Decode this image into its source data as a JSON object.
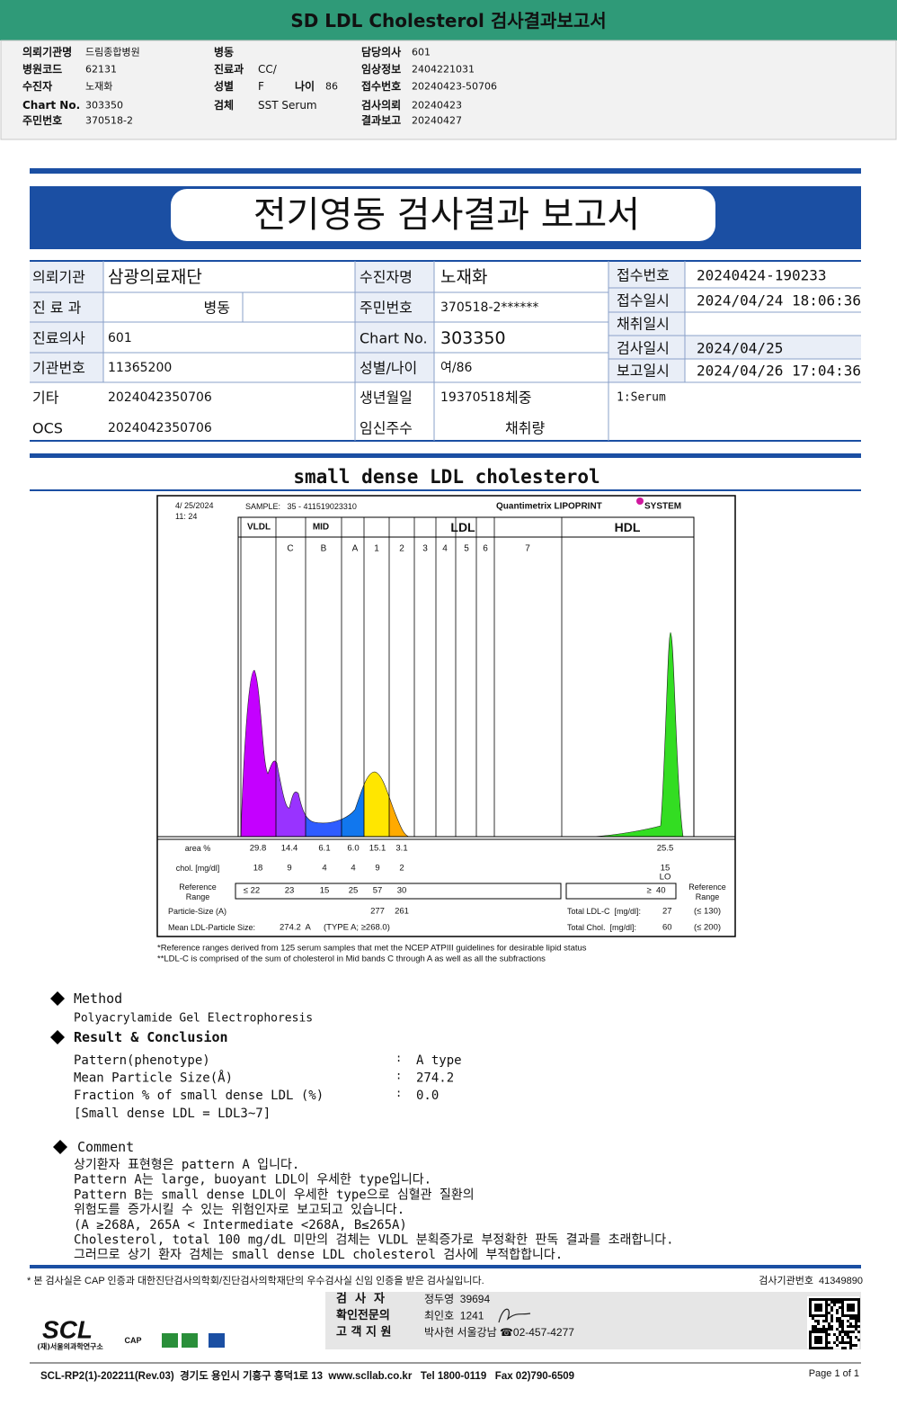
{
  "header": {
    "title": "SD LDL Cholesterol 검사결과보고서"
  },
  "info": {
    "col1": [
      {
        "label": "의뢰기관명",
        "value": "드림종합병원"
      },
      {
        "label": "병원코드",
        "value": "62131"
      },
      {
        "label": "수진자",
        "value": "노재화"
      },
      {
        "label": "Chart No.",
        "value": "303350"
      },
      {
        "label": "주민번호",
        "value": "370518-2"
      }
    ],
    "col2": [
      {
        "label": "병동"
      },
      {
        "label": "진료과",
        "value": "CC/"
      },
      {
        "label": "성별",
        "value": "F"
      },
      {
        "label": "검체",
        "value": "SST Serum"
      }
    ],
    "age": {
      "label": "나이",
      "value": "86"
    },
    "col3": [
      {
        "label": "담당의사",
        "value": "601"
      },
      {
        "label": "임상정보",
        "value": "2404221031"
      },
      {
        "label": "접수번호",
        "value": "20240423-50706"
      },
      {
        "label": "검사의뢰",
        "value": "20240423"
      },
      {
        "label": "결과보고",
        "value": "20240427"
      }
    ]
  },
  "report": {
    "title": "전기영동 검사결과 보고서",
    "left": [
      {
        "label": "의뢰기관",
        "value": "삼광의료재단"
      },
      {
        "label": "진 료 과",
        "value": "병동"
      },
      {
        "label": "진료의사",
        "value": "601"
      },
      {
        "label": "기관번호",
        "value": "11365200"
      },
      {
        "label": "기타",
        "value": "2024042350706"
      },
      {
        "label": "OCS",
        "value": "2024042350706"
      }
    ],
    "middle": [
      {
        "label": "수진자명",
        "value": "노재화"
      },
      {
        "label": "주민번호",
        "value": "370518-2******"
      },
      {
        "label": "Chart No.",
        "value": "303350"
      },
      {
        "label": "성별/나이",
        "value": "여/86"
      },
      {
        "label": "생년월일",
        "value": "19370518",
        "extra_label": "체중"
      },
      {
        "label": "임신주수",
        "extra_label": "채취량"
      }
    ],
    "right": [
      {
        "label": "접수번호",
        "value": "20240424-190233"
      },
      {
        "label": "접수일시",
        "value": "2024/04/24 18:06:36"
      },
      {
        "label": "채취일시"
      },
      {
        "label": "검사일시",
        "value": "2024/04/25"
      },
      {
        "label": "보고일시",
        "value": "2024/04/26 17:04:36"
      }
    ],
    "right_note": "1:Serum"
  },
  "section_title": "small dense LDL cholesterol",
  "electrophoresis": {
    "date": "4/ 25/2024",
    "time": "11: 24",
    "sample": "SAMPLE:   35 - 411519023310",
    "brand": "Quantimetrix LIPOPRINT",
    "brand_suffix": "SYSTEM",
    "groups": [
      "VLDL",
      "MID",
      "LDL",
      "HDL"
    ],
    "bands": [
      "C",
      "B",
      "A",
      "1",
      "2",
      "3",
      "4",
      "5",
      "6",
      "7"
    ],
    "area": {
      "label": "area %",
      "values": [
        "29.8",
        "14.4",
        "6.1",
        "6.0",
        "15.1",
        "3.1"
      ],
      "hdl": "25.5"
    },
    "chol": {
      "label": "chol. [mg/dl]",
      "values": [
        "18",
        "9",
        "4",
        "4",
        "9",
        "2"
      ],
      "hdl": "15",
      "flag": "LO"
    },
    "reference": {
      "label": [
        "Reference",
        "Range"
      ],
      "values": [
        "≤ 22",
        "23",
        "15",
        "25",
        "57",
        "30"
      ],
      "hdl": "≥  40"
    },
    "particle_size": {
      "label": "Particle-Size (A)",
      "values": [
        "277",
        "261"
      ]
    },
    "mean_size": {
      "label": "Mean LDL-Particle Size:",
      "value": "274.2  A",
      "note": "(TYPE A; ≥268.0)"
    },
    "total_ldl": {
      "label": "Total LDL-C  [mg/dl]:",
      "value": "27",
      "range": "(≤ 130)"
    },
    "total_chol": {
      "label": "Total Chol.  [mg/dl]:",
      "value": "60",
      "range": "(≤ 200)"
    },
    "reference_right": [
      "Reference",
      "Range"
    ]
  },
  "footnotes": [
    "*Reference ranges derived from 125 serum samples that met the NCEP ATPIII guidelines for desirable lipid status",
    "**LDL-C is comprised of the sum of cholesterol in Mid bands C through A as well as all the subfractions"
  ],
  "method": {
    "heading": "Method",
    "text": "Polyacrylamide Gel Electrophoresis"
  },
  "result": {
    "heading": "Result & Conclusion",
    "separator": ":",
    "rows": [
      {
        "label": "Pattern(phenotype)",
        "value": "A type"
      },
      {
        "label": "Mean Particle Size(Å)",
        "value": "274.2"
      },
      {
        "label": "Fraction % of small dense LDL (%)",
        "value": "0.0"
      }
    ],
    "note": "[Small dense LDL = LDL3~7]"
  },
  "comment": {
    "heading": "Comment",
    "lines": [
      "상기환자 표현형은 pattern A 입니다.",
      "Pattern A는 large, buoyant LDL이 우세한 type입니다.",
      "Pattern B는 small dense LDL이 우세한 type으로 심혈관 질환의",
      "위험도를 증가시킬 수 있는 위험인자로 보고되고 있습니다.",
      "(A ≥268A, 265A < Intermediate <268A, B≤265A)",
      "Cholesterol, total 100 mg/dL 미만의 검체는 VLDL 분획증가로 부정확한 판독 결과를 초래합니다.",
      "그러므로 상기 환자 검체는 small dense LDL cholesterol 검사에 부적합합니다."
    ]
  },
  "footer": {
    "notice": "* 본 검사실은 CAP 인증과 대한진단검사의학회/진단검사의학재단의 우수검사실 신임 인증을 받은 검사실입니다.",
    "lab_number": "검사기관번호  41349890",
    "staff": [
      {
        "label": "검  사  자",
        "value": "정두영  39694"
      },
      {
        "label": "확인전문의",
        "value": "최인호  1241"
      },
      {
        "label": "고 객 지 원",
        "value": "박사현 서울강남 ☎02-457-4277"
      }
    ],
    "logo": "SCL",
    "institute": "(재)서울의과학연구소",
    "cap": "CAP",
    "address": "SCL-RP2(1)-202211(Rev.03)  경기도 용인시 기흥구 흥덕1로 13  www.scllab.co.kr   Tel 1800-0119   Fax 02)790-6509",
    "page": "Page 1 of 1"
  }
}
